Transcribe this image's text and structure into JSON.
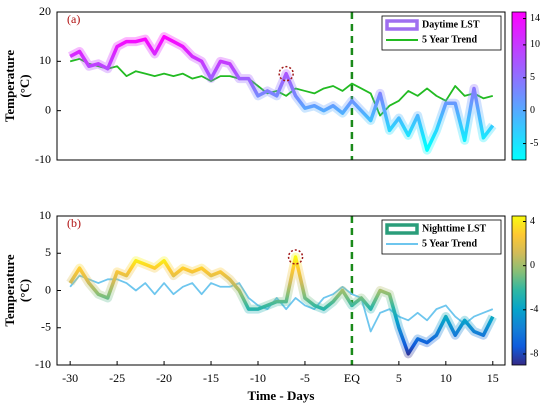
{
  "chart_data": [
    {
      "type": "line",
      "panel_label": "(a)",
      "ylabel_lines": [
        "Temperature",
        "(°C)"
      ],
      "x": [
        -30,
        -29,
        -28,
        -27,
        -26,
        -25,
        -24,
        -23,
        -22,
        -21,
        -20,
        -19,
        -18,
        -17,
        -16,
        -15,
        -14,
        -13,
        -12,
        -11,
        -10,
        -9,
        -8,
        -7,
        -6,
        -5,
        -4,
        -3,
        -2,
        -1,
        0,
        1,
        2,
        3,
        4,
        5,
        6,
        7,
        8,
        9,
        10,
        11,
        12,
        13,
        14,
        15
      ],
      "series": [
        {
          "name": "Daytime LST",
          "color": "#9f6ff0",
          "colormapped": true,
          "values": [
            11,
            12,
            9,
            9.5,
            8.5,
            13,
            14,
            14,
            14.5,
            11.5,
            15,
            14,
            13,
            11,
            10,
            6.5,
            10,
            9.5,
            6.5,
            6.5,
            3,
            4,
            3,
            7.5,
            3,
            0.5,
            1,
            0,
            1,
            -0.5,
            2,
            0,
            -2,
            3.5,
            -4,
            -1.5,
            -5,
            -1,
            -8,
            -4,
            1.5,
            1.5,
            -6,
            4.5,
            -5.5,
            -3
          ]
        },
        {
          "name": "5 Year Trend",
          "color": "#22bb22",
          "values": [
            10,
            10.5,
            9.5,
            9,
            8.5,
            9,
            7,
            8,
            7.5,
            7,
            7.5,
            7,
            7.5,
            6.5,
            7,
            6,
            7,
            7,
            6.5,
            6.5,
            5,
            3.5,
            4,
            3,
            4.5,
            4,
            3.5,
            4.5,
            5,
            4,
            5.5,
            4.5,
            3.5,
            -1,
            1,
            2,
            4,
            3,
            4.5,
            3,
            2,
            5,
            3,
            3.5,
            2.5,
            3
          ]
        }
      ],
      "xlim": [
        -31.4,
        16.3
      ],
      "ylim": [
        -10,
        20
      ],
      "yticks": [
        -10,
        0,
        10,
        20
      ],
      "vline": 0,
      "highlight_x": -7,
      "colorbar": {
        "lim": [
          -7.5,
          15
        ],
        "ticks": [
          -5,
          0,
          5,
          10,
          14
        ],
        "colors": [
          "#00ffff",
          "#ff00ff"
        ]
      }
    },
    {
      "type": "line",
      "panel_label": "(b)",
      "ylabel_lines": [
        "Temperature",
        "(°C)"
      ],
      "xlabel": "Time - Days",
      "x": [
        -30,
        -29,
        -28,
        -27,
        -26,
        -25,
        -24,
        -23,
        -22,
        -21,
        -20,
        -19,
        -18,
        -17,
        -16,
        -15,
        -14,
        -13,
        -12,
        -11,
        -10,
        -9,
        -8,
        -7,
        -6,
        -5,
        -4,
        -3,
        -2,
        -1,
        0,
        1,
        2,
        3,
        4,
        5,
        6,
        7,
        8,
        9,
        10,
        11,
        12,
        13,
        14,
        15
      ],
      "series": [
        {
          "name": "Nighttime LST",
          "color": "#2a9d7a",
          "colormapped": true,
          "values": [
            1,
            3,
            1,
            -0.5,
            -1,
            2.5,
            2,
            4,
            3.5,
            3,
            4,
            2,
            3,
            2.5,
            3,
            2,
            2.5,
            1.5,
            0,
            -2.5,
            -2.5,
            -2,
            -1.5,
            -1.5,
            4.5,
            -1,
            -2,
            -2.5,
            -1.5,
            0,
            -2,
            -1,
            -2.5,
            0,
            -0.5,
            -5,
            -8.5,
            -6.5,
            -7,
            -6,
            -3.5,
            -6,
            -4,
            -5.5,
            -6,
            -3.5
          ]
        },
        {
          "name": "5 Year Trend",
          "color": "#6ec6ee",
          "values": [
            0.5,
            2,
            1.5,
            1,
            1.5,
            1.5,
            1,
            0,
            1,
            -0.5,
            1,
            -0.5,
            0.5,
            1,
            -0.5,
            1,
            0.5,
            0.5,
            1,
            -1,
            -2,
            -2.5,
            -1,
            -2.5,
            -1,
            -2,
            -2.5,
            -1,
            -0.5,
            0.5,
            -0.5,
            -1,
            -5.5,
            -3,
            -2.5,
            -3.5,
            -4,
            -3,
            -4,
            -2.5,
            -2,
            -3.5,
            -4.5,
            -3.5,
            -3,
            -2.5
          ]
        }
      ],
      "xlim": [
        -31.4,
        16.3
      ],
      "xticks": [
        -30,
        -25,
        -20,
        -15,
        -10,
        -5,
        {
          "value": 0,
          "label": "EQ"
        },
        5,
        10,
        15
      ],
      "ylim": [
        -10,
        10
      ],
      "yticks": [
        -10,
        -5,
        0,
        5,
        10
      ],
      "vline": 0,
      "highlight_x": -6,
      "colorbar": {
        "lim": [
          -9,
          4.5
        ],
        "ticks": [
          4,
          0,
          -4,
          -8
        ],
        "colors": [
          "#352a87",
          "#0f5cdd",
          "#1481d6",
          "#06a4ca",
          "#2eb7a4",
          "#87bf77",
          "#d1bb59",
          "#fec832",
          "#f9fb0e"
        ]
      }
    }
  ]
}
